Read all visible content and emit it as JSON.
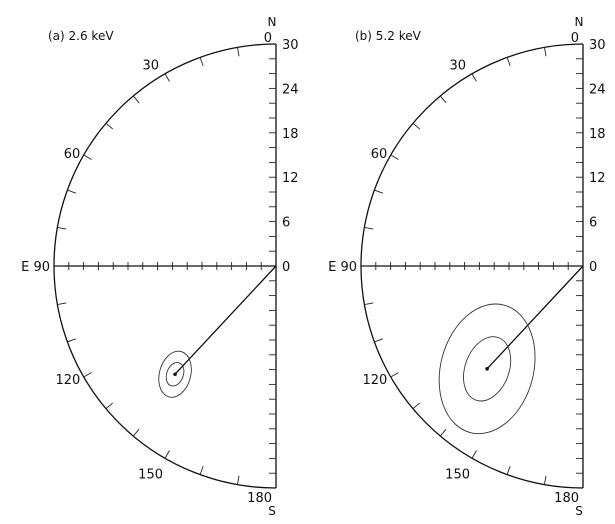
{
  "panels": [
    {
      "id": "a",
      "title": "(a)  2.6 keV",
      "north_letter": "N",
      "south_letter": "S",
      "east_label": "E 90",
      "zero_label": "0",
      "arc_labels": [
        {
          "angle": 0,
          "text": "0"
        },
        {
          "angle": 30,
          "text": "30"
        },
        {
          "angle": 60,
          "text": "60"
        },
        {
          "angle": 120,
          "text": "120"
        },
        {
          "angle": 150,
          "text": "150"
        },
        {
          "angle": 180,
          "text": "180"
        }
      ],
      "scale_labels": [
        "30",
        "24",
        "18",
        "12",
        "6"
      ],
      "scale_max": 30,
      "direction": {
        "bearing": 137,
        "magnitude": 20
      },
      "ellipses": [
        {
          "rx_frac": 0.017,
          "ry_frac": 0.025,
          "rot": 20
        },
        {
          "rx_frac": 0.032,
          "ry_frac": 0.048,
          "rot": 15
        }
      ]
    },
    {
      "id": "b",
      "title": "(b)  5.2 keV",
      "north_letter": "N",
      "south_letter": "S",
      "east_label": "E 90",
      "zero_label": "0",
      "arc_labels": [
        {
          "angle": 0,
          "text": "0"
        },
        {
          "angle": 30,
          "text": "30"
        },
        {
          "angle": 60,
          "text": "60"
        },
        {
          "angle": 120,
          "text": "120"
        },
        {
          "angle": 150,
          "text": "150"
        },
        {
          "angle": 180,
          "text": "180"
        }
      ],
      "scale_labels": [
        "30",
        "24",
        "18",
        "12",
        "6"
      ],
      "scale_max": 30,
      "direction": {
        "bearing": 137,
        "magnitude": 19
      },
      "ellipses": [
        {
          "rx_frac": 0.045,
          "ry_frac": 0.068,
          "rot": 20
        },
        {
          "rx_frac": 0.095,
          "ry_frac": 0.135,
          "rot": 15
        }
      ]
    }
  ]
}
